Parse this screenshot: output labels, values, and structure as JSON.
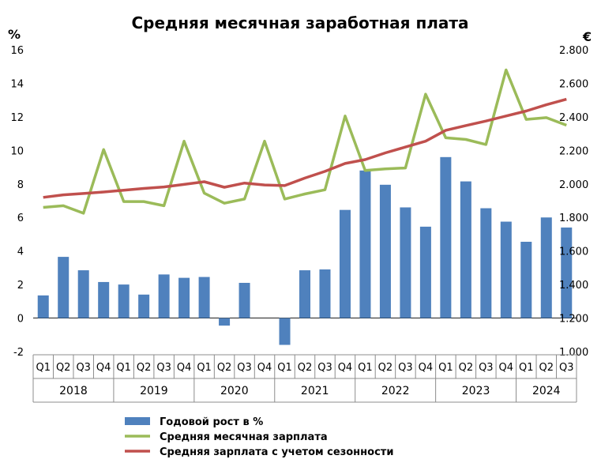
{
  "chart_data": {
    "type": "bar",
    "title": "Средняя месячная заработная плата",
    "y_left_unit": "%",
    "y_right_unit": "€",
    "ylim_left": [
      -2,
      16
    ],
    "ylim_right": [
      1000,
      2800
    ],
    "left_ticks": [
      "-2",
      "0",
      "2",
      "4",
      "6",
      "8",
      "10",
      "12",
      "14",
      "16"
    ],
    "right_ticks": [
      "1.000",
      "1.200",
      "1.400",
      "1.600",
      "1.800",
      "2.000",
      "2.200",
      "2.400",
      "2.600",
      "2.800"
    ],
    "quarters": [
      "Q1",
      "Q2",
      "Q3",
      "Q4",
      "Q1",
      "Q2",
      "Q3",
      "Q4",
      "Q1",
      "Q2",
      "Q3",
      "Q4",
      "Q1",
      "Q2",
      "Q3",
      "Q4",
      "Q1",
      "Q2",
      "Q3",
      "Q4",
      "Q1",
      "Q2",
      "Q3",
      "Q4",
      "Q1",
      "Q2",
      "Q3"
    ],
    "years": [
      {
        "label": "2018",
        "span": 4
      },
      {
        "label": "2019",
        "span": 4
      },
      {
        "label": "2020",
        "span": 4
      },
      {
        "label": "2021",
        "span": 4
      },
      {
        "label": "2022",
        "span": 4
      },
      {
        "label": "2023",
        "span": 4
      },
      {
        "label": "2024",
        "span": 3
      }
    ],
    "series": [
      {
        "name": "Годовой рост в %",
        "kind": "bar",
        "axis": "left",
        "color": "#4f81bd",
        "values": [
          1.35,
          3.65,
          2.85,
          2.15,
          2.0,
          1.4,
          2.6,
          2.4,
          2.45,
          -0.45,
          2.1,
          0.0,
          -1.6,
          2.85,
          2.9,
          6.45,
          8.8,
          7.95,
          6.6,
          5.45,
          9.6,
          8.15,
          6.55,
          5.75,
          4.55,
          6.0,
          5.4
        ]
      },
      {
        "name": "Средняя месячная зарплата",
        "kind": "line",
        "axis": "right",
        "color": "#9bbb59",
        "values": [
          1860,
          1870,
          1825,
          2205,
          1895,
          1895,
          1870,
          2255,
          1945,
          1885,
          1910,
          2255,
          1910,
          1940,
          1965,
          2405,
          2080,
          2090,
          2095,
          2535,
          2275,
          2265,
          2235,
          2680,
          2385,
          2395,
          2350
        ]
      },
      {
        "name": "Средняя зарплата с учетом сезонности",
        "kind": "line",
        "axis": "right",
        "color": "#c0504d",
        "values": [
          1920,
          1935,
          1943,
          1952,
          1962,
          1973,
          1982,
          1997,
          2013,
          1980,
          2005,
          1994,
          1990,
          2035,
          2075,
          2122,
          2145,
          2185,
          2220,
          2255,
          2320,
          2348,
          2375,
          2405,
          2435,
          2472,
          2505
        ]
      }
    ]
  }
}
